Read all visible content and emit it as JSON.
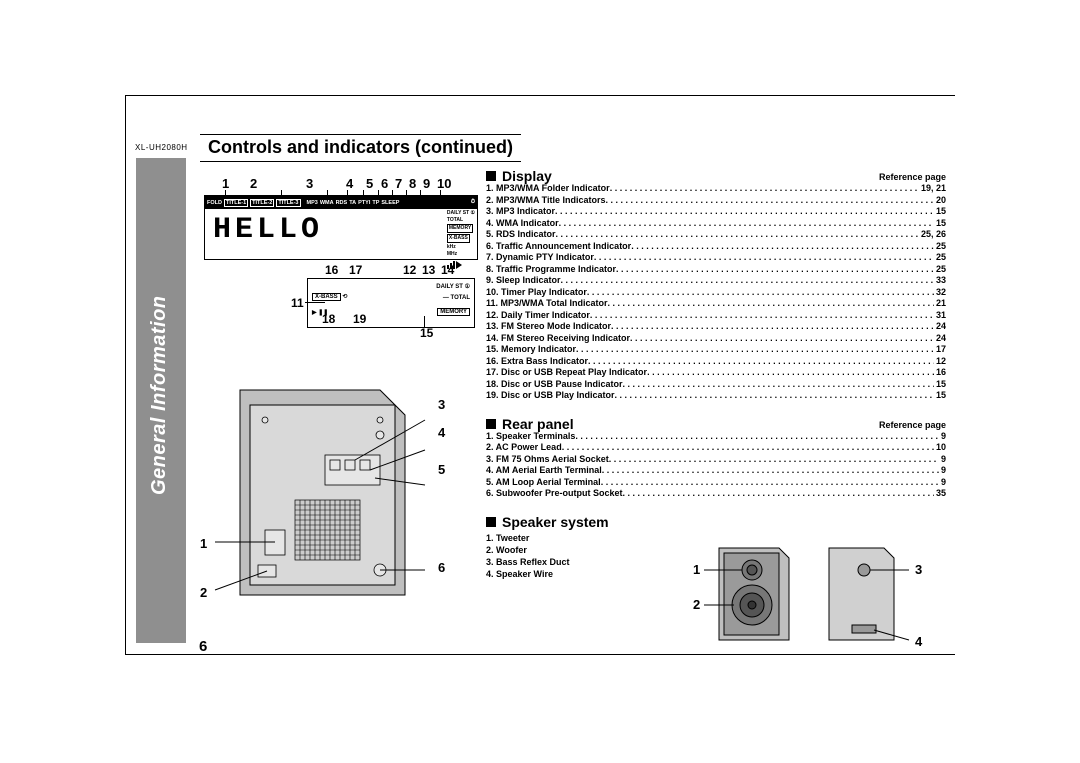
{
  "model": "XL-UH2080H",
  "title": "Controls and indicators (continued)",
  "sidebar_label": "General Information",
  "page_number": "6",
  "lcd": {
    "strip_items": [
      "FOLD",
      "TITLE-1",
      "TITLE-2",
      "TITLE-3",
      "MP3",
      "WMA",
      "RDS",
      "TA",
      "PTYI",
      "TP",
      "SLEEP"
    ],
    "boxed_items": [
      "TITLE-1",
      "TITLE-2",
      "TITLE-3"
    ],
    "center_text": "HELLO",
    "right_labels": [
      "DAILY",
      "ST",
      "①",
      "TOTAL",
      "MEMORY",
      "X-BASS",
      "kHz",
      "MHz"
    ]
  },
  "display_top_numbers": [
    "1",
    "2",
    "3",
    "4",
    "5",
    "6",
    "7",
    "8",
    "9",
    "10"
  ],
  "detail_numbers": {
    "a": "16",
    "b": "17",
    "c": "11",
    "d": "12",
    "e": "13",
    "f": "14",
    "g": "15",
    "h": "18",
    "i": "19"
  },
  "detail_labels": {
    "xbass": "X-BASS",
    "daily": "DAILY",
    "st": "ST",
    "one": "①",
    "total": "TOTAL",
    "memory": "MEMORY"
  },
  "rear_numbers": {
    "n1": "1",
    "n2": "2",
    "n3": "3",
    "n4": "4",
    "n5": "5",
    "n6": "6"
  },
  "speaker_numbers": {
    "n1": "1",
    "n2": "2",
    "n3": "3",
    "n4": "4"
  },
  "ref_label": "Reference page",
  "sections": {
    "display": {
      "heading": "Display",
      "items": [
        {
          "n": "1.",
          "label": "MP3/WMA Folder Indicator",
          "page": "19, 21"
        },
        {
          "n": "2.",
          "label": "MP3/WMA Title Indicators",
          "page": "20"
        },
        {
          "n": "3.",
          "label": "MP3 Indicator",
          "page": "15"
        },
        {
          "n": "4.",
          "label": "WMA Indicator",
          "page": "15"
        },
        {
          "n": "5.",
          "label": "RDS Indicator",
          "page": "25, 26"
        },
        {
          "n": "6.",
          "label": "Traffic Announcement Indicator",
          "page": "25"
        },
        {
          "n": "7.",
          "label": "Dynamic PTY Indicator",
          "page": "25"
        },
        {
          "n": "8.",
          "label": "Traffic Programme Indicator",
          "page": "25"
        },
        {
          "n": "9.",
          "label": "Sleep Indicator",
          "page": "33"
        },
        {
          "n": "10.",
          "label": "Timer Play Indicator",
          "page": "32"
        },
        {
          "n": "11.",
          "label": "MP3/WMA Total Indicator",
          "page": "21"
        },
        {
          "n": "12.",
          "label": "Daily Timer Indicator",
          "page": "31"
        },
        {
          "n": "13.",
          "label": "FM Stereo Mode Indicator",
          "page": "24"
        },
        {
          "n": "14.",
          "label": "FM Stereo Receiving Indicator",
          "page": "24"
        },
        {
          "n": "15.",
          "label": "Memory Indicator",
          "page": "17"
        },
        {
          "n": "16.",
          "label": "Extra Bass Indicator",
          "page": "12"
        },
        {
          "n": "17.",
          "label": "Disc or USB Repeat Play Indicator",
          "page": "16"
        },
        {
          "n": "18.",
          "label": "Disc or USB Pause Indicator",
          "page": "15"
        },
        {
          "n": "19.",
          "label": "Disc or USB Play Indicator",
          "page": "15"
        }
      ]
    },
    "rear": {
      "heading": "Rear panel",
      "items": [
        {
          "n": "1.",
          "label": "Speaker Terminals",
          "page": "9"
        },
        {
          "n": "2.",
          "label": "AC Power Lead",
          "page": "10"
        },
        {
          "n": "3.",
          "label": "FM 75 Ohms Aerial Socket",
          "page": "9"
        },
        {
          "n": "4.",
          "label": "AM Aerial Earth Terminal",
          "page": "9"
        },
        {
          "n": "5.",
          "label": "AM Loop Aerial Terminal",
          "page": "9"
        },
        {
          "n": "6.",
          "label": "Subwoofer Pre-output Socket",
          "page": "35"
        }
      ]
    },
    "speaker": {
      "heading": "Speaker system",
      "items": [
        {
          "n": "1.",
          "label": "Tweeter"
        },
        {
          "n": "2.",
          "label": "Woofer"
        },
        {
          "n": "3.",
          "label": "Bass Reflex Duct"
        },
        {
          "n": "4.",
          "label": "Speaker Wire"
        }
      ]
    }
  },
  "colors": {
    "sidebar": "#8f8f8f",
    "text": "#000000",
    "bg": "#ffffff"
  }
}
